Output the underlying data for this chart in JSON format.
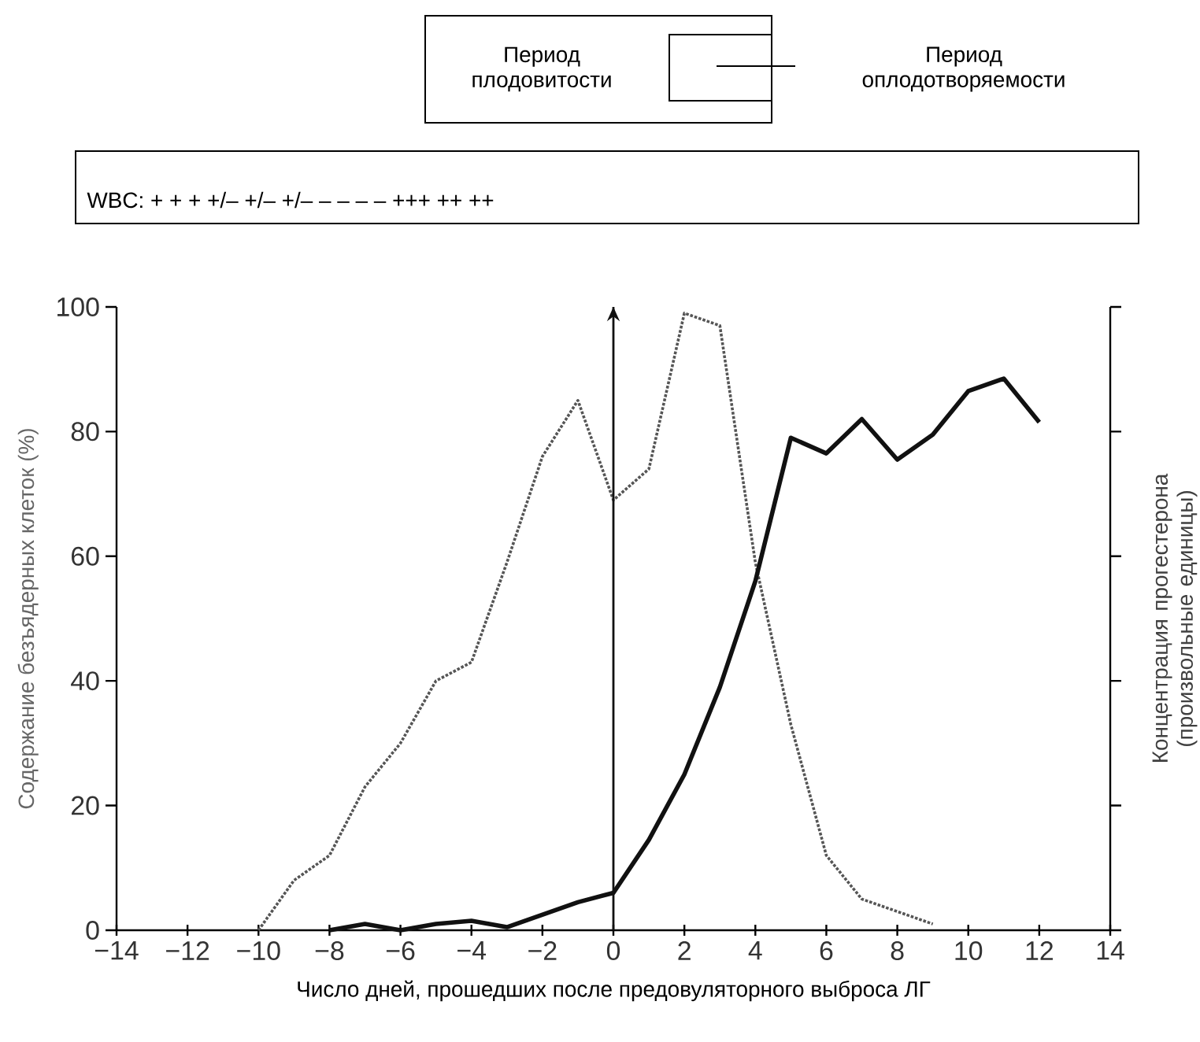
{
  "chart_data": {
    "type": "line",
    "xlabel": "Число дней, прошедших после предовуляторного выброса ЛГ",
    "ylabel": "Содержание безъядерных клеток (%)",
    "y2label": "Концентрация прогестерона (произвольные единицы)",
    "annotations": [
      "Период плодовитости",
      "Период оплодотворяемости",
      "WBC: + + + +/– +/– +/– – – – – +++ ++ ++"
    ],
    "xlim": [
      -14,
      14
    ],
    "ylim": [
      0,
      100
    ],
    "xticks": [
      {
        "value": -14,
        "label": "−14"
      },
      {
        "value": -12,
        "label": "−12"
      },
      {
        "value": -10,
        "label": "−10"
      },
      {
        "value": -8,
        "label": "−8"
      },
      {
        "value": -6,
        "label": "−6"
      },
      {
        "value": -4,
        "label": "−4"
      },
      {
        "value": -2,
        "label": "−2"
      },
      0,
      2,
      4,
      6,
      8,
      10,
      12,
      14
    ],
    "yticks": [
      0,
      20,
      40,
      60,
      80,
      100
    ],
    "ref_lines": [
      {
        "axis": "x",
        "value": 0,
        "color": "#111111"
      }
    ],
    "series": [
      {
        "color": "#555555",
        "line_style": "dotted",
        "x": [
          -10,
          -9,
          -8,
          -7,
          -6,
          -5,
          -4,
          -3,
          -2,
          -1,
          0,
          1,
          2,
          3,
          4,
          5,
          6,
          7,
          9
        ],
        "values": [
          0,
          8,
          12,
          23,
          30,
          40,
          43,
          59,
          76,
          85,
          69,
          74,
          99,
          97,
          59,
          33,
          12,
          5,
          1
        ]
      },
      {
        "color": "#111111",
        "line_style": "solid",
        "x": [
          -8,
          -7,
          -6,
          -5,
          -4,
          -3,
          -2,
          -1,
          0,
          1,
          2,
          3,
          4,
          5,
          6,
          7,
          8,
          9,
          10,
          11,
          12
        ],
        "values": [
          0,
          1,
          0,
          1,
          1.5,
          0.5,
          2.5,
          4.5,
          6,
          14.5,
          25,
          39,
          56,
          79,
          76.5,
          82,
          75.5,
          79.5,
          86.5,
          88.5,
          81.5
        ]
      }
    ]
  }
}
